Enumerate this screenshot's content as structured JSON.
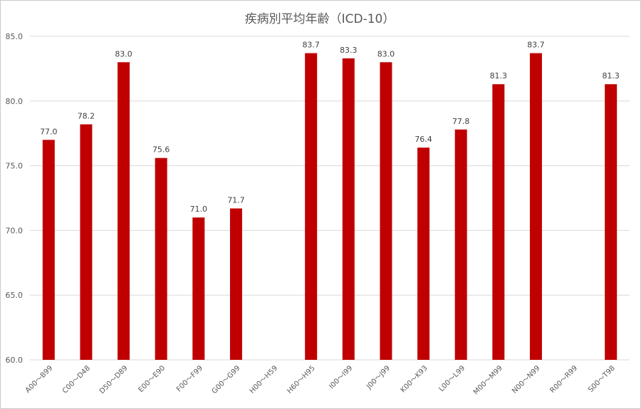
{
  "chart_data": {
    "type": "bar",
    "title": "疾病別平均年齢（ICD-10）",
    "xlabel": "",
    "ylabel": "",
    "categories": [
      "A00～B99",
      "C00～D48",
      "D50～D89",
      "E00～E90",
      "F00～F99",
      "G00～G99",
      "H00～H59",
      "H60～H95",
      "I00～I99",
      "J00～J99",
      "K00～K93",
      "L00～L99",
      "M00～M99",
      "N00～N99",
      "R00～R99",
      "S00～T98"
    ],
    "values": [
      77.0,
      78.2,
      83.0,
      75.6,
      71.0,
      71.7,
      null,
      83.7,
      83.3,
      83.0,
      76.4,
      77.8,
      81.3,
      83.7,
      null,
      81.3
    ],
    "data_labels": [
      "77.0",
      "78.2",
      "83.0",
      "75.6",
      "71.0",
      "71.7",
      "",
      "83.7",
      "83.3",
      "83.0",
      "76.4",
      "77.8",
      "81.3",
      "83.7",
      "",
      "81.3"
    ],
    "ylim": [
      60,
      85
    ],
    "yticks": [
      "60.0",
      "65.0",
      "70.0",
      "75.0",
      "80.0",
      "85.0"
    ],
    "grid": true,
    "legend": "none",
    "colors": {
      "bar": "#c00000",
      "grid": "#d9d9d9",
      "text": "#595959"
    }
  }
}
